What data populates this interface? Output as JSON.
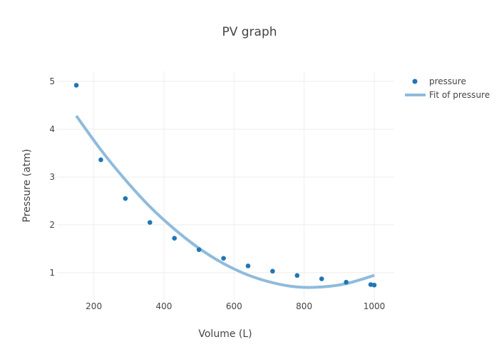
{
  "chart_data": {
    "type": "scatter",
    "title": "PV graph",
    "xlabel": "Volume (L)",
    "ylabel": "Pressure (atm)",
    "xlim": [
      95,
      1057
    ],
    "ylim": [
      0.43,
      5.21
    ],
    "xticks": [
      200,
      400,
      600,
      800,
      1000
    ],
    "yticks": [
      1,
      2,
      3,
      4,
      5
    ],
    "grid": true,
    "legend_position": "top-right",
    "series": [
      {
        "name": "pressure",
        "mode": "markers",
        "color": "#1f77b4",
        "x": [
          150,
          220,
          290,
          360,
          430,
          500,
          570,
          640,
          710,
          780,
          850,
          920,
          990,
          1000
        ],
        "y": [
          4.92,
          3.36,
          2.55,
          2.05,
          1.72,
          1.48,
          1.3,
          1.14,
          1.03,
          0.94,
          0.87,
          0.8,
          0.75,
          0.74
        ]
      },
      {
        "name": "Fit of pressure",
        "mode": "lines",
        "color": "#8fbbdc",
        "x": [
          150,
          220,
          290,
          360,
          430,
          500,
          570,
          640,
          710,
          780,
          850,
          920,
          990,
          1000
        ],
        "y": [
          4.28,
          3.57,
          2.94,
          2.38,
          1.91,
          1.51,
          1.19,
          0.95,
          0.79,
          0.7,
          0.7,
          0.77,
          0.92,
          0.95
        ]
      }
    ]
  }
}
